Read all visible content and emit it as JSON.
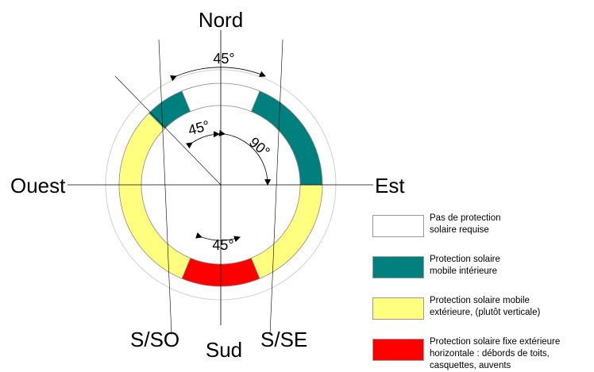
{
  "compass": {
    "north": "Nord",
    "south": "Sud",
    "east": "Est",
    "west": "Ouest",
    "south_southwest": "S/SO",
    "south_southeast": "S/SE"
  },
  "angles": {
    "north": "45°",
    "northwest": "45°",
    "east": "90°",
    "south": "45°"
  },
  "colors": {
    "teal": "#007f7f",
    "yellow": "#ffff7f",
    "red": "#ff0000",
    "white": "#ffffff"
  },
  "legend": [
    {
      "lines": [
        "Pas de protection",
        "solaire requise"
      ],
      "color": "#ffffff"
    },
    {
      "lines": [
        "Protection solaire",
        "mobile intérieure"
      ],
      "color": "#007f7f"
    },
    {
      "lines": [
        "Protection solaire mobile",
        "extérieure, (plutôt verticale)"
      ],
      "color": "#ffff7f"
    },
    {
      "lines": [
        "Protection solaire fixe extérieure",
        "horizontale : débords de toits,",
        "casquettes, auvents"
      ],
      "color": "#ff0000"
    }
  ]
}
